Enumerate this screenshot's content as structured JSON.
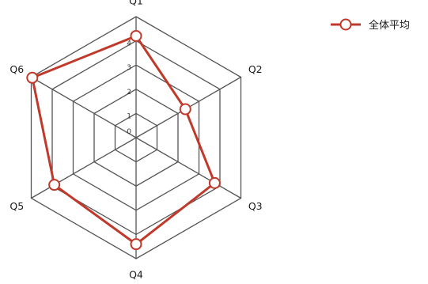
{
  "chart_data": {
    "type": "radar",
    "axes": [
      "Q1",
      "Q2",
      "Q3",
      "Q4",
      "Q5",
      "Q6"
    ],
    "rlim": [
      0,
      5
    ],
    "ticks": [
      0,
      1,
      2,
      3,
      4
    ],
    "series": [
      {
        "name": "全体平均",
        "values": [
          4.2,
          2.35,
          3.75,
          4.4,
          3.9,
          4.95
        ],
        "color": "#c0392b"
      }
    ],
    "legend_position": "top-right",
    "grid": true,
    "grid_color": "#555555"
  }
}
